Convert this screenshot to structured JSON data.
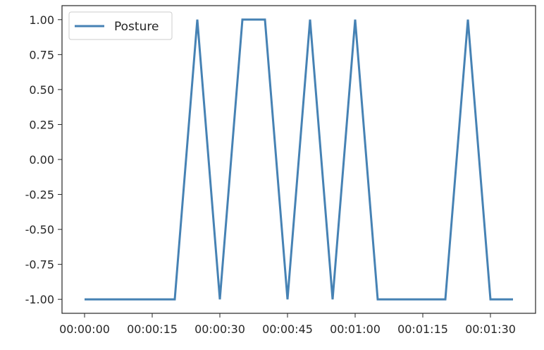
{
  "chart_data": {
    "type": "line",
    "title": "",
    "xlabel": "",
    "ylabel": "",
    "x": [
      "00:00:00",
      "00:00:05",
      "00:00:10",
      "00:00:15",
      "00:00:20",
      "00:00:25",
      "00:00:30",
      "00:00:35",
      "00:00:40",
      "00:00:45",
      "00:00:50",
      "00:00:55",
      "00:01:00",
      "00:01:05",
      "00:01:10",
      "00:01:15",
      "00:01:20",
      "00:01:25",
      "00:01:30",
      "00:01:35"
    ],
    "series": [
      {
        "name": "Posture",
        "color": "#4682b4",
        "values": [
          -1,
          -1,
          -1,
          -1,
          -1,
          1,
          -1,
          1,
          1,
          -1,
          1,
          -1,
          1,
          -1,
          -1,
          -1,
          -1,
          1,
          -1,
          -1
        ]
      }
    ],
    "xticks": [
      "00:00:00",
      "00:00:15",
      "00:00:30",
      "00:00:45",
      "00:01:00",
      "00:01:15",
      "00:01:30"
    ],
    "yticks": [
      "-1.00",
      "-0.75",
      "-0.50",
      "-0.25",
      "0.00",
      "0.25",
      "0.50",
      "0.75",
      "1.00"
    ],
    "ylim": [
      -1.1,
      1.1
    ],
    "xlim": [
      "-00:00:05",
      "00:01:40"
    ],
    "grid": false,
    "legend": {
      "position": "top-left"
    }
  }
}
